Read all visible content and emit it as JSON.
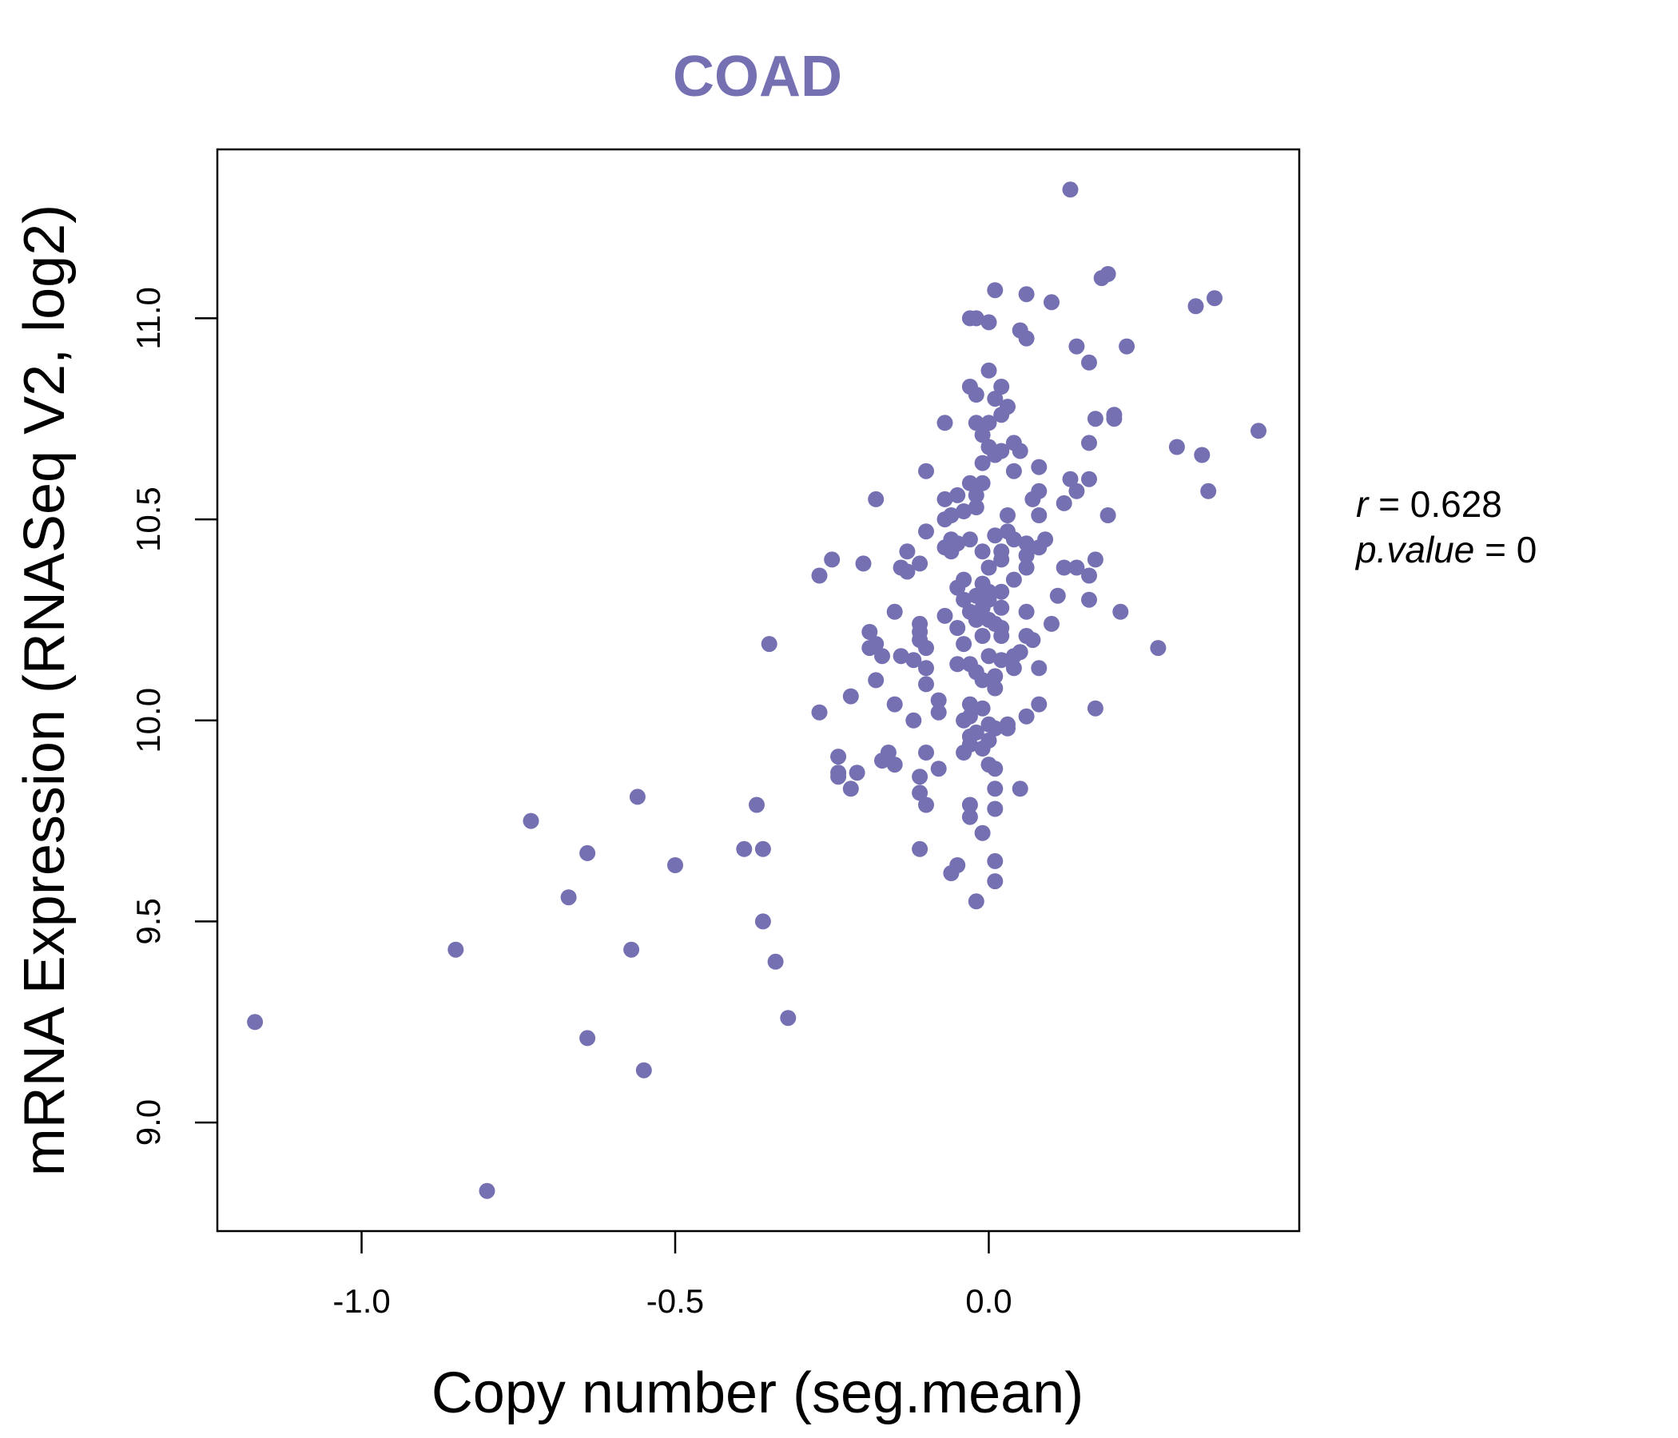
{
  "chart_data": {
    "type": "scatter",
    "title": "COAD",
    "xlabel": "Copy number (seg.mean)",
    "ylabel": "mRNA Expression (RNASeq V2, log2)",
    "xlim": [
      -1.23,
      0.495
    ],
    "ylim": [
      8.73,
      11.42
    ],
    "x_ticks": [
      -1.0,
      -0.5,
      0.0
    ],
    "x_tick_labels": [
      "-1.0",
      "-0.5",
      "0.0"
    ],
    "y_ticks": [
      9.0,
      9.5,
      10.0,
      10.5,
      11.0
    ],
    "y_tick_labels": [
      "9.0",
      "9.5",
      "10.0",
      "10.5",
      "11.0"
    ],
    "grid": false,
    "colors": {
      "points": "#7470b2",
      "title": "#7470b2",
      "axes": "#000000"
    },
    "stats": {
      "r_label": "r",
      "r_value": "0.628",
      "p_label": "p.value",
      "p_value": "0"
    },
    "points": [
      [
        0.13,
        11.32
      ],
      [
        0.19,
        11.11
      ],
      [
        0.18,
        11.1
      ],
      [
        0.01,
        11.07
      ],
      [
        0.06,
        11.06
      ],
      [
        0.1,
        11.04
      ],
      [
        0.36,
        11.05
      ],
      [
        0.33,
        11.03
      ],
      [
        -0.02,
        11.0
      ],
      [
        -0.03,
        11.0
      ],
      [
        0.0,
        10.99
      ],
      [
        0.05,
        10.97
      ],
      [
        0.06,
        10.95
      ],
      [
        0.14,
        10.93
      ],
      [
        0.22,
        10.93
      ],
      [
        0.16,
        10.89
      ],
      [
        0.0,
        10.87
      ],
      [
        -0.03,
        10.83
      ],
      [
        0.02,
        10.83
      ],
      [
        -0.02,
        10.81
      ],
      [
        0.01,
        10.8
      ],
      [
        0.03,
        10.78
      ],
      [
        0.02,
        10.76
      ],
      [
        0.17,
        10.75
      ],
      [
        0.2,
        10.76
      ],
      [
        0.2,
        10.75
      ],
      [
        0.0,
        10.74
      ],
      [
        -0.02,
        10.74
      ],
      [
        -0.07,
        10.74
      ],
      [
        0.43,
        10.72
      ],
      [
        -0.01,
        10.71
      ],
      [
        0.16,
        10.69
      ],
      [
        0.04,
        10.69
      ],
      [
        0.0,
        10.68
      ],
      [
        0.02,
        10.67
      ],
      [
        0.05,
        10.67
      ],
      [
        0.3,
        10.68
      ],
      [
        0.34,
        10.66
      ],
      [
        0.01,
        10.66
      ],
      [
        -0.01,
        10.64
      ],
      [
        0.08,
        10.63
      ],
      [
        0.04,
        10.62
      ],
      [
        -0.1,
        10.62
      ],
      [
        0.13,
        10.6
      ],
      [
        0.16,
        10.6
      ],
      [
        -0.01,
        10.59
      ],
      [
        -0.03,
        10.59
      ],
      [
        0.08,
        10.57
      ],
      [
        0.14,
        10.57
      ],
      [
        0.35,
        10.57
      ],
      [
        -0.02,
        10.56
      ],
      [
        -0.05,
        10.56
      ],
      [
        0.07,
        10.55
      ],
      [
        -0.07,
        10.55
      ],
      [
        -0.18,
        10.55
      ],
      [
        0.12,
        10.54
      ],
      [
        -0.02,
        10.53
      ],
      [
        -0.04,
        10.52
      ],
      [
        -0.06,
        10.51
      ],
      [
        0.03,
        10.51
      ],
      [
        0.08,
        10.51
      ],
      [
        0.19,
        10.51
      ],
      [
        -0.07,
        10.5
      ],
      [
        0.03,
        10.47
      ],
      [
        -0.1,
        10.47
      ],
      [
        0.01,
        10.46
      ],
      [
        0.04,
        10.45
      ],
      [
        0.09,
        10.45
      ],
      [
        -0.03,
        10.45
      ],
      [
        -0.06,
        10.45
      ],
      [
        -0.05,
        10.44
      ],
      [
        0.06,
        10.44
      ],
      [
        0.08,
        10.43
      ],
      [
        -0.07,
        10.43
      ],
      [
        -0.01,
        10.42
      ],
      [
        0.02,
        10.42
      ],
      [
        -0.06,
        10.42
      ],
      [
        -0.13,
        10.42
      ],
      [
        0.06,
        10.41
      ],
      [
        0.17,
        10.4
      ],
      [
        0.02,
        10.4
      ],
      [
        -0.25,
        10.4
      ],
      [
        -0.2,
        10.39
      ],
      [
        -0.14,
        10.38
      ],
      [
        -0.11,
        10.39
      ],
      [
        0.0,
        10.38
      ],
      [
        0.12,
        10.38
      ],
      [
        0.14,
        10.38
      ],
      [
        0.06,
        10.38
      ],
      [
        -0.13,
        10.37
      ],
      [
        -0.27,
        10.36
      ],
      [
        0.16,
        10.36
      ],
      [
        -0.04,
        10.35
      ],
      [
        0.04,
        10.35
      ],
      [
        -0.01,
        10.34
      ],
      [
        -0.05,
        10.33
      ],
      [
        0.02,
        10.32
      ],
      [
        0.0,
        10.32
      ],
      [
        -0.02,
        10.31
      ],
      [
        0.11,
        10.31
      ],
      [
        -0.04,
        10.3
      ],
      [
        0.0,
        10.3
      ],
      [
        0.16,
        10.3
      ],
      [
        -0.01,
        10.28
      ],
      [
        0.02,
        10.28
      ],
      [
        0.06,
        10.27
      ],
      [
        0.21,
        10.27
      ],
      [
        -0.03,
        10.27
      ],
      [
        -0.15,
        10.27
      ],
      [
        -0.07,
        10.26
      ],
      [
        0.0,
        10.25
      ],
      [
        -0.02,
        10.25
      ],
      [
        0.01,
        10.24
      ],
      [
        0.1,
        10.24
      ],
      [
        -0.11,
        10.24
      ],
      [
        -0.05,
        10.23
      ],
      [
        0.02,
        10.23
      ],
      [
        -0.19,
        10.22
      ],
      [
        -0.11,
        10.22
      ],
      [
        0.06,
        10.21
      ],
      [
        0.07,
        10.2
      ],
      [
        -0.01,
        10.21
      ],
      [
        0.02,
        10.21
      ],
      [
        -0.11,
        10.2
      ],
      [
        -0.04,
        10.19
      ],
      [
        -0.35,
        10.19
      ],
      [
        -0.18,
        10.19
      ],
      [
        -0.1,
        10.18
      ],
      [
        -0.19,
        10.18
      ],
      [
        0.27,
        10.18
      ],
      [
        0.05,
        10.17
      ],
      [
        0.04,
        10.16
      ],
      [
        -0.17,
        10.16
      ],
      [
        0.0,
        10.16
      ],
      [
        -0.14,
        10.16
      ],
      [
        -0.12,
        10.15
      ],
      [
        0.02,
        10.15
      ],
      [
        -0.05,
        10.14
      ],
      [
        -0.03,
        10.14
      ],
      [
        0.04,
        10.13
      ],
      [
        0.08,
        10.13
      ],
      [
        -0.1,
        10.13
      ],
      [
        -0.02,
        10.12
      ],
      [
        0.01,
        10.11
      ],
      [
        -0.01,
        10.1
      ],
      [
        -0.18,
        10.1
      ],
      [
        -0.1,
        10.09
      ],
      [
        0.01,
        10.08
      ],
      [
        -0.22,
        10.06
      ],
      [
        -0.08,
        10.05
      ],
      [
        -0.03,
        10.04
      ],
      [
        0.08,
        10.04
      ],
      [
        -0.15,
        10.04
      ],
      [
        0.17,
        10.03
      ],
      [
        -0.27,
        10.02
      ],
      [
        -0.08,
        10.02
      ],
      [
        -0.01,
        10.03
      ],
      [
        -0.03,
        10.01
      ],
      [
        0.06,
        10.01
      ],
      [
        -0.12,
        10.0
      ],
      [
        -0.04,
        10.0
      ],
      [
        0.0,
        9.99
      ],
      [
        0.03,
        9.99
      ],
      [
        0.01,
        9.98
      ],
      [
        0.03,
        9.98
      ],
      [
        -0.02,
        9.97
      ],
      [
        -0.03,
        9.96
      ],
      [
        0.0,
        9.95
      ],
      [
        -0.03,
        9.94
      ],
      [
        -0.01,
        9.93
      ],
      [
        -0.1,
        9.92
      ],
      [
        -0.04,
        9.92
      ],
      [
        -0.16,
        9.92
      ],
      [
        -0.24,
        9.91
      ],
      [
        -0.17,
        9.9
      ],
      [
        -0.15,
        9.89
      ],
      [
        0.0,
        9.89
      ],
      [
        0.01,
        9.88
      ],
      [
        -0.08,
        9.88
      ],
      [
        -0.24,
        9.87
      ],
      [
        -0.21,
        9.87
      ],
      [
        -0.24,
        9.86
      ],
      [
        -0.11,
        9.86
      ],
      [
        -0.22,
        9.83
      ],
      [
        0.01,
        9.83
      ],
      [
        0.05,
        9.83
      ],
      [
        -0.11,
        9.82
      ],
      [
        -0.56,
        9.81
      ],
      [
        -0.1,
        9.79
      ],
      [
        -0.37,
        9.79
      ],
      [
        -0.03,
        9.79
      ],
      [
        0.01,
        9.78
      ],
      [
        -0.03,
        9.76
      ],
      [
        -0.73,
        9.75
      ],
      [
        -0.01,
        9.72
      ],
      [
        -0.39,
        9.68
      ],
      [
        -0.36,
        9.68
      ],
      [
        -0.11,
        9.68
      ],
      [
        -0.64,
        9.67
      ],
      [
        0.01,
        9.65
      ],
      [
        -0.5,
        9.64
      ],
      [
        -0.05,
        9.64
      ],
      [
        -0.06,
        9.62
      ],
      [
        0.01,
        9.6
      ],
      [
        -0.67,
        9.56
      ],
      [
        -0.02,
        9.55
      ],
      [
        -0.36,
        9.5
      ],
      [
        -0.85,
        9.43
      ],
      [
        -0.57,
        9.43
      ],
      [
        -0.34,
        9.4
      ],
      [
        -0.32,
        9.26
      ],
      [
        -1.17,
        9.25
      ],
      [
        -0.64,
        9.21
      ],
      [
        -0.55,
        9.13
      ],
      [
        -0.8,
        8.83
      ]
    ]
  }
}
